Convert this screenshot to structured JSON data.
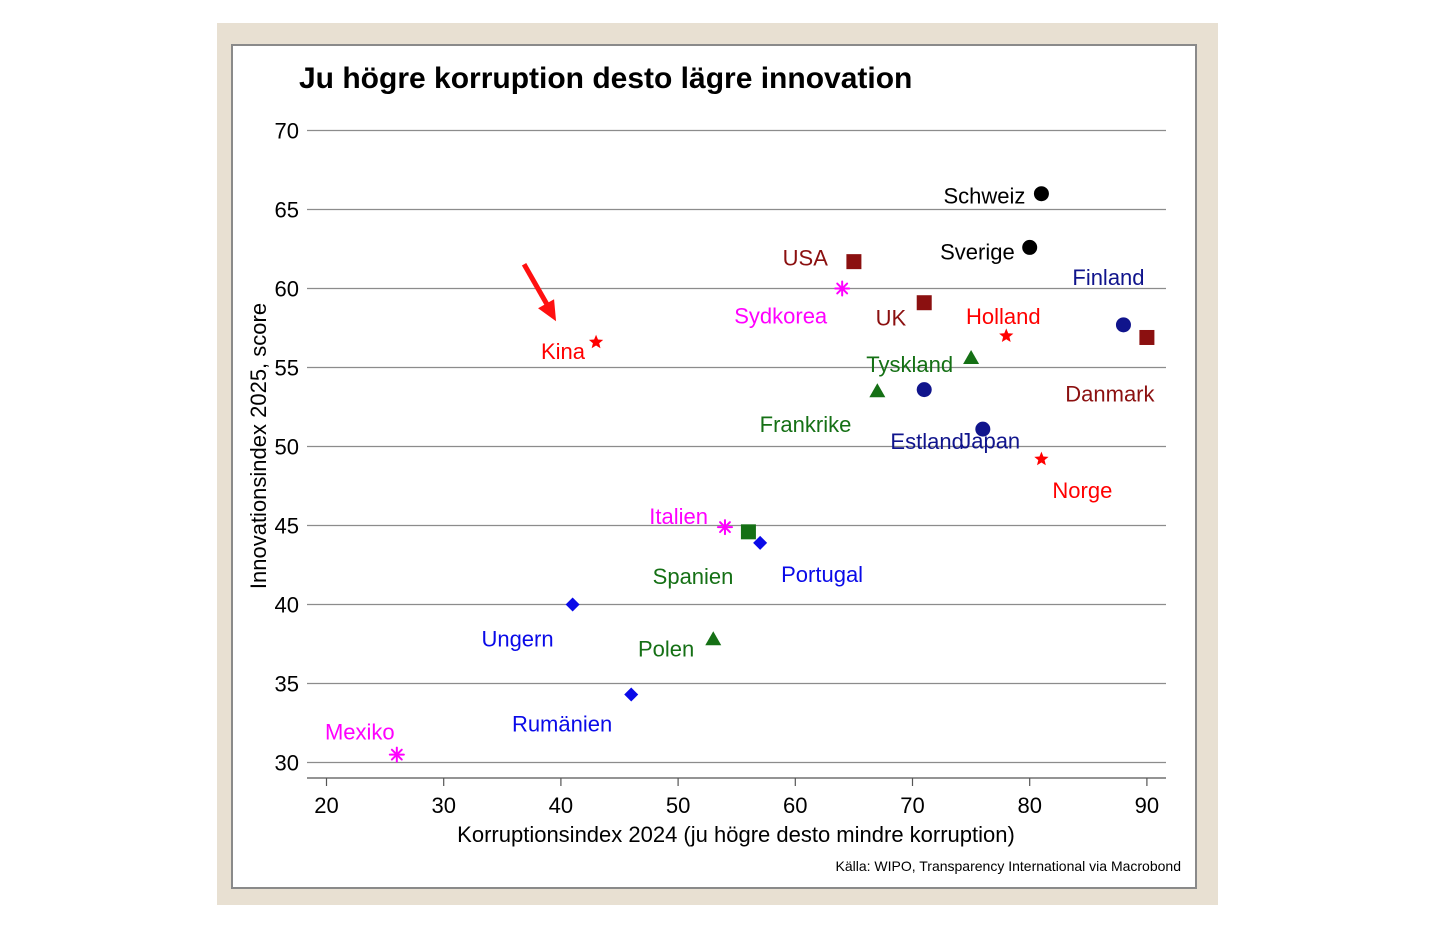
{
  "chart_data": {
    "type": "scatter",
    "title": "Ju högre korruption desto lägre innovation",
    "xlabel": "Korruptionsindex 2024 (ju högre desto mindre korruption)",
    "ylabel": "Innovationsindex 2025, score",
    "source": "Källa: WIPO, Transparency International via Macrobond",
    "xlim": [
      18,
      90
    ],
    "ylim": [
      30,
      70
    ],
    "x_ticks": [
      20,
      30,
      40,
      50,
      60,
      70,
      80,
      90
    ],
    "y_ticks": [
      30,
      35,
      40,
      45,
      50,
      55,
      60,
      65,
      70
    ],
    "grid": "horizontal",
    "points": [
      {
        "label": "Schweiz",
        "x": 81,
        "y": 66.0,
        "marker": "circle",
        "color": "#000000",
        "label_pos": "left"
      },
      {
        "label": "Sverige",
        "x": 80,
        "y": 62.6,
        "marker": "circle",
        "color": "#000000",
        "label_pos": "left"
      },
      {
        "label": "USA",
        "x": 65,
        "y": 61.7,
        "marker": "square",
        "color": "#8b1010",
        "label_pos": "upper-left"
      },
      {
        "label": "Finland",
        "x": 88,
        "y": 57.7,
        "marker": "circle",
        "color": "#10148c",
        "label_pos": "above"
      },
      {
        "label": "Danmark",
        "x": 90,
        "y": 56.9,
        "marker": "square",
        "color": "#8b1010",
        "label_pos": "lower-left"
      },
      {
        "label": "Sydkorea",
        "x": 64,
        "y": 60.0,
        "marker": "asterisk",
        "color": "#ff00ff",
        "label_pos": "lower-left"
      },
      {
        "label": "UK",
        "x": 71,
        "y": 59.1,
        "marker": "square",
        "color": "#8b1010",
        "label_pos": "left"
      },
      {
        "label": "Holland",
        "x": 78,
        "y": 57.0,
        "marker": "star",
        "color": "#ff0000",
        "label_pos": "above"
      },
      {
        "label": "Kina",
        "x": 43,
        "y": 56.6,
        "marker": "star",
        "color": "#ff0000",
        "label_pos": "left"
      },
      {
        "label": "Tyskland",
        "x": 75,
        "y": 55.6,
        "marker": "triangle",
        "color": "#157015",
        "label_pos": "left"
      },
      {
        "label": "Frankrike",
        "x": 67,
        "y": 53.5,
        "marker": "triangle",
        "color": "#157015",
        "label_pos": "lower-left"
      },
      {
        "label": "Japan",
        "x": 71,
        "y": 53.6,
        "marker": "circle",
        "color": "#10148c",
        "label_pos": "lower-right"
      },
      {
        "label": "Estland",
        "x": 76,
        "y": 51.1,
        "marker": "circle",
        "color": "#10148c",
        "label_pos": "left"
      },
      {
        "label": "Norge",
        "x": 81,
        "y": 49.2,
        "marker": "star",
        "color": "#ff0000",
        "label_pos": "lower-right"
      },
      {
        "label": "Italien",
        "x": 54,
        "y": 44.9,
        "marker": "asterisk",
        "color": "#ff00ff",
        "label_pos": "upper-left"
      },
      {
        "label": "Spanien",
        "x": 56,
        "y": 44.6,
        "marker": "square",
        "color": "#157015",
        "label_pos": "lower-left"
      },
      {
        "label": "Portugal",
        "x": 57,
        "y": 43.9,
        "marker": "diamond",
        "color": "#0a0ae8",
        "label_pos": "lower-right"
      },
      {
        "label": "Ungern",
        "x": 41,
        "y": 40.0,
        "marker": "diamond",
        "color": "#0a0ae8",
        "label_pos": "lower-left"
      },
      {
        "label": "Polen",
        "x": 53,
        "y": 37.8,
        "marker": "triangle",
        "color": "#157015",
        "label_pos": "left"
      },
      {
        "label": "Rumänien",
        "x": 46,
        "y": 34.3,
        "marker": "diamond",
        "color": "#0a0ae8",
        "label_pos": "lower-left"
      },
      {
        "label": "Mexiko",
        "x": 26,
        "y": 30.5,
        "marker": "asterisk",
        "color": "#ff00ff",
        "label_pos": "above"
      }
    ],
    "annotations": [
      {
        "type": "arrow",
        "points_to": "Kina",
        "color": "#ff0000"
      }
    ]
  }
}
